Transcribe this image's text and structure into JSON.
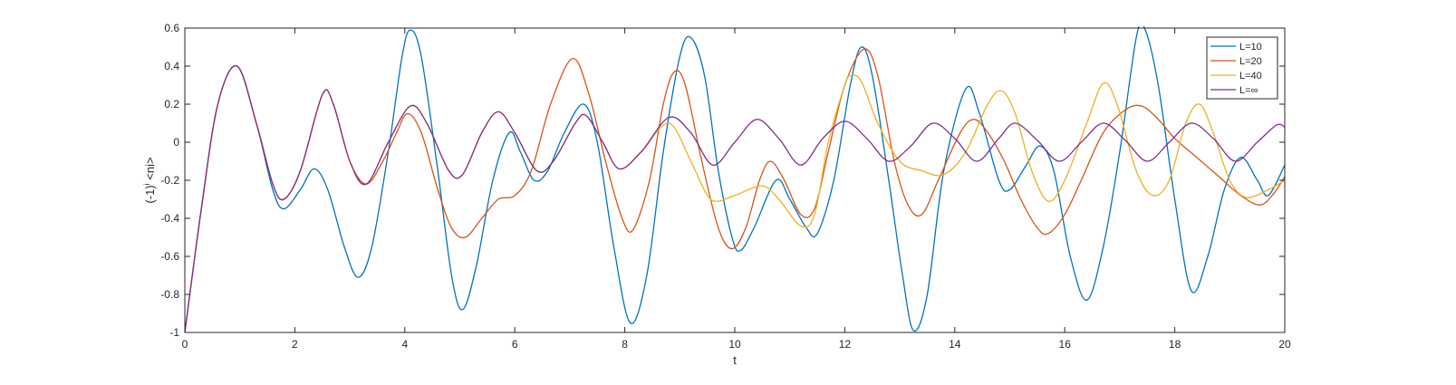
{
  "chart_data": {
    "type": "line",
    "title": "",
    "xlabel": "t",
    "ylabel": "(-1)^i <ni>",
    "ylabel_base": "(-1)",
    "ylabel_sup": "i",
    "ylabel_rest": " <ni>",
    "xlim": [
      0,
      20
    ],
    "ylim": [
      -1,
      0.6
    ],
    "xticks": [
      "0",
      "2",
      "4",
      "6",
      "8",
      "10",
      "12",
      "14",
      "16",
      "18",
      "20"
    ],
    "yticks": [
      "-1",
      "-0.8",
      "-0.6",
      "-0.4",
      "-0.2",
      "0",
      "0.2",
      "0.4",
      "0.6"
    ],
    "grid": false,
    "legend_position": "top-right",
    "series": [
      {
        "name": "L=10",
        "color": "#0072BD",
        "points": [
          [
            0,
            -1
          ],
          [
            0.3,
            -0.35
          ],
          [
            0.6,
            0.2
          ],
          [
            0.95,
            0.4
          ],
          [
            1.3,
            0.1
          ],
          [
            1.6,
            -0.25
          ],
          [
            1.8,
            -0.35
          ],
          [
            2.1,
            -0.25
          ],
          [
            2.35,
            -0.14
          ],
          [
            2.6,
            -0.25
          ],
          [
            2.9,
            -0.55
          ],
          [
            3.15,
            -0.71
          ],
          [
            3.4,
            -0.55
          ],
          [
            3.7,
            -0.05
          ],
          [
            3.95,
            0.45
          ],
          [
            4.1,
            0.59
          ],
          [
            4.3,
            0.45
          ],
          [
            4.6,
            -0.15
          ],
          [
            4.85,
            -0.7
          ],
          [
            5.05,
            -0.88
          ],
          [
            5.3,
            -0.65
          ],
          [
            5.6,
            -0.2
          ],
          [
            5.9,
            0.05
          ],
          [
            6.1,
            -0.05
          ],
          [
            6.35,
            -0.2
          ],
          [
            6.6,
            -0.15
          ],
          [
            6.9,
            0.05
          ],
          [
            7.25,
            0.2
          ],
          [
            7.5,
            0
          ],
          [
            7.8,
            -0.55
          ],
          [
            8.1,
            -0.95
          ],
          [
            8.4,
            -0.7
          ],
          [
            8.7,
            -0.05
          ],
          [
            9,
            0.45
          ],
          [
            9.2,
            0.55
          ],
          [
            9.45,
            0.35
          ],
          [
            9.7,
            -0.15
          ],
          [
            9.95,
            -0.5
          ],
          [
            10.1,
            -0.57
          ],
          [
            10.35,
            -0.45
          ],
          [
            10.75,
            -0.2
          ],
          [
            11,
            -0.3
          ],
          [
            11.3,
            -0.45
          ],
          [
            11.5,
            -0.48
          ],
          [
            11.8,
            -0.2
          ],
          [
            12.1,
            0.3
          ],
          [
            12.3,
            0.5
          ],
          [
            12.5,
            0.35
          ],
          [
            12.8,
            -0.2
          ],
          [
            13.05,
            -0.7
          ],
          [
            13.25,
            -0.99
          ],
          [
            13.5,
            -0.8
          ],
          [
            13.8,
            -0.15
          ],
          [
            14.2,
            0.28
          ],
          [
            14.45,
            0.15
          ],
          [
            14.8,
            -0.2
          ],
          [
            15,
            -0.25
          ],
          [
            15.3,
            -0.12
          ],
          [
            15.55,
            -0.02
          ],
          [
            15.8,
            -0.15
          ],
          [
            16.1,
            -0.6
          ],
          [
            16.4,
            -0.83
          ],
          [
            16.7,
            -0.55
          ],
          [
            17,
            -0.05
          ],
          [
            17.3,
            0.55
          ],
          [
            17.45,
            0.6
          ],
          [
            17.7,
            0.3
          ],
          [
            18,
            -0.3
          ],
          [
            18.3,
            -0.78
          ],
          [
            18.6,
            -0.6
          ],
          [
            18.9,
            -0.25
          ],
          [
            19.2,
            -0.08
          ],
          [
            19.5,
            -0.2
          ],
          [
            19.7,
            -0.28
          ],
          [
            20,
            -0.12
          ]
        ]
      },
      {
        "name": "L=20",
        "color": "#D95319",
        "points": [
          [
            0,
            -1
          ],
          [
            0.3,
            -0.35
          ],
          [
            0.6,
            0.2
          ],
          [
            0.95,
            0.4
          ],
          [
            1.3,
            0.1
          ],
          [
            1.6,
            -0.22
          ],
          [
            1.8,
            -0.3
          ],
          [
            2.1,
            -0.15
          ],
          [
            2.5,
            0.25
          ],
          [
            2.7,
            0.2
          ],
          [
            3,
            -0.1
          ],
          [
            3.3,
            -0.22
          ],
          [
            3.6,
            -0.1
          ],
          [
            3.85,
            0.05
          ],
          [
            4.05,
            0.15
          ],
          [
            4.3,
            0.05
          ],
          [
            4.6,
            -0.25
          ],
          [
            4.85,
            -0.45
          ],
          [
            5.1,
            -0.5
          ],
          [
            5.4,
            -0.4
          ],
          [
            5.7,
            -0.3
          ],
          [
            6,
            -0.28
          ],
          [
            6.3,
            -0.15
          ],
          [
            6.65,
            0.2
          ],
          [
            7.05,
            0.44
          ],
          [
            7.35,
            0.25
          ],
          [
            7.65,
            -0.1
          ],
          [
            7.95,
            -0.4
          ],
          [
            8.15,
            -0.46
          ],
          [
            8.45,
            -0.2
          ],
          [
            8.7,
            0.2
          ],
          [
            8.9,
            0.37
          ],
          [
            9.1,
            0.3
          ],
          [
            9.4,
            -0.1
          ],
          [
            9.7,
            -0.45
          ],
          [
            9.95,
            -0.56
          ],
          [
            10.2,
            -0.45
          ],
          [
            10.45,
            -0.2
          ],
          [
            10.65,
            -0.1
          ],
          [
            10.9,
            -0.2
          ],
          [
            11.2,
            -0.38
          ],
          [
            11.45,
            -0.35
          ],
          [
            11.7,
            -0.05
          ],
          [
            12,
            0.3
          ],
          [
            12.35,
            0.49
          ],
          [
            12.6,
            0.35
          ],
          [
            12.9,
            -0.1
          ],
          [
            13.15,
            -0.33
          ],
          [
            13.4,
            -0.38
          ],
          [
            13.7,
            -0.2
          ],
          [
            14.1,
            0.05
          ],
          [
            14.35,
            0.12
          ],
          [
            14.6,
            0.05
          ],
          [
            14.9,
            -0.1
          ],
          [
            15.2,
            -0.3
          ],
          [
            15.5,
            -0.45
          ],
          [
            15.7,
            -0.48
          ],
          [
            16,
            -0.38
          ],
          [
            16.3,
            -0.2
          ],
          [
            16.7,
            0.05
          ],
          [
            17.1,
            0.17
          ],
          [
            17.4,
            0.19
          ],
          [
            17.7,
            0.12
          ],
          [
            18,
            0.02
          ],
          [
            18.4,
            -0.08
          ],
          [
            18.8,
            -0.18
          ],
          [
            19.2,
            -0.28
          ],
          [
            19.55,
            -0.33
          ],
          [
            19.8,
            -0.27
          ],
          [
            20,
            -0.18
          ]
        ]
      },
      {
        "name": "L=40",
        "color": "#EDB120",
        "points": [
          [
            0,
            -1
          ],
          [
            0.3,
            -0.35
          ],
          [
            0.6,
            0.2
          ],
          [
            0.95,
            0.4
          ],
          [
            1.3,
            0.1
          ],
          [
            1.6,
            -0.22
          ],
          [
            1.8,
            -0.3
          ],
          [
            2.1,
            -0.15
          ],
          [
            2.5,
            0.25
          ],
          [
            2.7,
            0.2
          ],
          [
            3,
            -0.1
          ],
          [
            3.3,
            -0.22
          ],
          [
            3.7,
            0
          ],
          [
            4.1,
            0.19
          ],
          [
            4.4,
            0.1
          ],
          [
            4.8,
            -0.15
          ],
          [
            5.05,
            -0.17
          ],
          [
            5.4,
            0.05
          ],
          [
            5.7,
            0.16
          ],
          [
            6,
            0.05
          ],
          [
            6.4,
            -0.15
          ],
          [
            6.7,
            -0.1
          ],
          [
            7.1,
            0.1
          ],
          [
            7.3,
            0.14
          ],
          [
            7.6,
            0
          ],
          [
            7.9,
            -0.14
          ],
          [
            8.3,
            -0.05
          ],
          [
            8.8,
            0.1
          ],
          [
            9.2,
            -0.1
          ],
          [
            9.5,
            -0.28
          ],
          [
            9.7,
            -0.31
          ],
          [
            10,
            -0.28
          ],
          [
            10.5,
            -0.23
          ],
          [
            10.8,
            -0.3
          ],
          [
            11.2,
            -0.44
          ],
          [
            11.45,
            -0.38
          ],
          [
            11.7,
            0
          ],
          [
            12,
            0.3
          ],
          [
            12.1,
            0.35
          ],
          [
            12.3,
            0.32
          ],
          [
            12.6,
            0.1
          ],
          [
            13,
            -0.1
          ],
          [
            13.4,
            -0.15
          ],
          [
            13.8,
            -0.17
          ],
          [
            14.2,
            -0.05
          ],
          [
            14.6,
            0.2
          ],
          [
            14.85,
            0.27
          ],
          [
            15.1,
            0.15
          ],
          [
            15.4,
            -0.15
          ],
          [
            15.7,
            -0.31
          ],
          [
            16,
            -0.2
          ],
          [
            16.4,
            0.1
          ],
          [
            16.7,
            0.31
          ],
          [
            16.95,
            0.2
          ],
          [
            17.3,
            -0.15
          ],
          [
            17.6,
            -0.28
          ],
          [
            17.9,
            -0.2
          ],
          [
            18.2,
            0.1
          ],
          [
            18.45,
            0.2
          ],
          [
            18.7,
            0.05
          ],
          [
            19,
            -0.2
          ],
          [
            19.3,
            -0.29
          ],
          [
            19.7,
            -0.25
          ],
          [
            20,
            -0.2
          ]
        ]
      },
      {
        "name": "L=∞",
        "color": "#7E2F8E",
        "points": [
          [
            0,
            -1
          ],
          [
            0.3,
            -0.35
          ],
          [
            0.6,
            0.2
          ],
          [
            0.95,
            0.4
          ],
          [
            1.3,
            0.1
          ],
          [
            1.6,
            -0.22
          ],
          [
            1.8,
            -0.3
          ],
          [
            2.1,
            -0.15
          ],
          [
            2.5,
            0.25
          ],
          [
            2.7,
            0.2
          ],
          [
            3,
            -0.1
          ],
          [
            3.3,
            -0.22
          ],
          [
            3.7,
            0
          ],
          [
            4.1,
            0.19
          ],
          [
            4.4,
            0.1
          ],
          [
            4.8,
            -0.15
          ],
          [
            5.05,
            -0.17
          ],
          [
            5.4,
            0.05
          ],
          [
            5.7,
            0.16
          ],
          [
            6,
            0.05
          ],
          [
            6.4,
            -0.15
          ],
          [
            6.7,
            -0.1
          ],
          [
            7.1,
            0.1
          ],
          [
            7.3,
            0.14
          ],
          [
            7.6,
            0
          ],
          [
            7.9,
            -0.14
          ],
          [
            8.3,
            -0.05
          ],
          [
            8.8,
            0.13
          ],
          [
            9.2,
            0.05
          ],
          [
            9.6,
            -0.12
          ],
          [
            10,
            0
          ],
          [
            10.4,
            0.12
          ],
          [
            10.8,
            0.02
          ],
          [
            11.2,
            -0.12
          ],
          [
            11.6,
            0.02
          ],
          [
            12,
            0.11
          ],
          [
            12.4,
            0.02
          ],
          [
            12.8,
            -0.1
          ],
          [
            13.2,
            -0.02
          ],
          [
            13.6,
            0.1
          ],
          [
            14,
            0.02
          ],
          [
            14.4,
            -0.1
          ],
          [
            14.8,
            0.02
          ],
          [
            15.1,
            0.1
          ],
          [
            15.5,
            0.01
          ],
          [
            15.9,
            -0.1
          ],
          [
            16.3,
            0
          ],
          [
            16.7,
            0.1
          ],
          [
            17.1,
            0.01
          ],
          [
            17.5,
            -0.1
          ],
          [
            17.9,
            0
          ],
          [
            18.3,
            0.1
          ],
          [
            18.7,
            0.02
          ],
          [
            19.1,
            -0.1
          ],
          [
            19.5,
            0
          ],
          [
            19.85,
            0.09
          ],
          [
            20,
            0.08
          ]
        ]
      }
    ]
  }
}
